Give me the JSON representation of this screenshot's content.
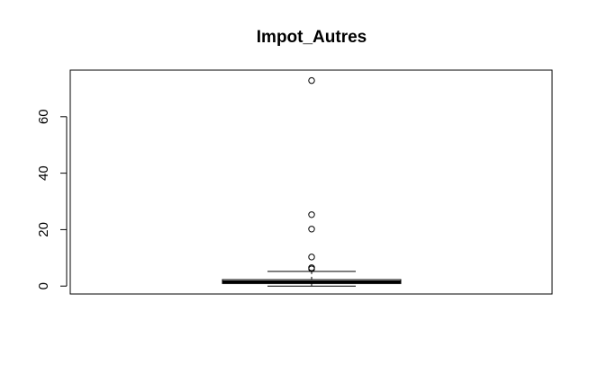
{
  "chart_data": {
    "type": "boxplot",
    "title": "Impot_Autres",
    "xlabel": "",
    "ylabel": "",
    "ylim": [
      -2.8,
      76.5
    ],
    "yticks": [
      0,
      20,
      40,
      60
    ],
    "box": {
      "min": 0,
      "q1": 0.9,
      "median": 1.5,
      "q3": 2.3,
      "whisker_high": 5.2
    },
    "outliers": [
      72.8,
      25.3,
      20.2,
      10.3,
      6.5,
      6.1
    ],
    "grid": false,
    "legend": "none"
  }
}
